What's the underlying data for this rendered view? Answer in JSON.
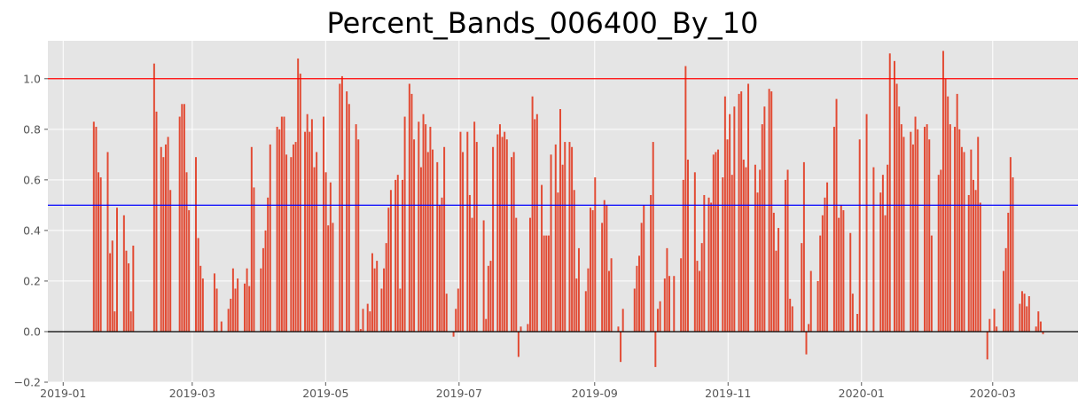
{
  "chart_data": {
    "type": "bar",
    "title": "Percent_Bands_006400_By_10",
    "xlabel": "",
    "ylabel": "",
    "x_start": "2019-01-15",
    "x_end": "2020-03-24",
    "xlim": [
      "2018-12-25",
      "2020-04-09"
    ],
    "ylim": [
      -0.2,
      1.15
    ],
    "yticks": [
      -0.2,
      0.0,
      0.2,
      0.4,
      0.6,
      0.8,
      1.0
    ],
    "ytick_labels": [
      "−0.2",
      "0.0",
      "0.2",
      "0.4",
      "0.6",
      "0.8",
      "1.0"
    ],
    "xticks": [
      "2019-01-01",
      "2019-03-01",
      "2019-05-01",
      "2019-07-01",
      "2019-09-01",
      "2019-11-01",
      "2020-01-01",
      "2020-03-01"
    ],
    "xtick_labels": [
      "2019-01",
      "2019-03",
      "2019-05",
      "2019-07",
      "2019-09",
      "2019-11",
      "2020-01",
      "2020-03"
    ],
    "grid": true,
    "bar_color": "#E24A33",
    "colors": {
      "background": "#E5E5E5",
      "grid": "#FFFFFF",
      "upper_line": "#FF0000",
      "mid_line": "#0000FF",
      "zero_line": "#000000"
    },
    "reference_lines": [
      {
        "y": 1.0,
        "color": "#FF0000"
      },
      {
        "y": 0.5,
        "color": "#0000FF"
      },
      {
        "y": 0.0,
        "color": "#000000"
      }
    ],
    "values": [
      0.83,
      0.81,
      0.63,
      0.61,
      0,
      0,
      0.71,
      0.31,
      0.36,
      0.08,
      0.49,
      0,
      0,
      0.46,
      0.32,
      0.27,
      0.08,
      0.34,
      0,
      0,
      0,
      0,
      0,
      0,
      0,
      0,
      1.06,
      0.87,
      0,
      0.73,
      0.69,
      0.74,
      0.77,
      0.56,
      0,
      0,
      0,
      0.85,
      0.9,
      0.9,
      0.63,
      0.48,
      0,
      0,
      0.69,
      0.37,
      0.26,
      0.21,
      0,
      0,
      0,
      0,
      0.23,
      0.17,
      0,
      0.04,
      0,
      0,
      0.09,
      0.13,
      0.25,
      0.17,
      0.21,
      0,
      0,
      0.19,
      0.25,
      0.18,
      0.73,
      0.57,
      0,
      0,
      0.25,
      0.33,
      0.4,
      0.53,
      0.74,
      0,
      0,
      0.81,
      0.8,
      0.85,
      0.85,
      0.7,
      0,
      0.69,
      0.74,
      0.75,
      1.08,
      1.02,
      0,
      0.79,
      0.86,
      0.79,
      0.84,
      0.65,
      0.71,
      0,
      0,
      0.85,
      0.63,
      0.42,
      0.59,
      0.43,
      0,
      0,
      0.98,
      1.01,
      0,
      0.95,
      0.9,
      0,
      0,
      0.82,
      0.76,
      0.01,
      0.09,
      0,
      0.11,
      0.08,
      0.31,
      0.25,
      0.28,
      0,
      0.17,
      0.25,
      0.35,
      0.49,
      0.56,
      0,
      0.6,
      0.62,
      0.17,
      0.6,
      0.85,
      0,
      0.98,
      0.94,
      0.76,
      0,
      0.83,
      0.65,
      0.86,
      0.82,
      0.71,
      0.81,
      0.72,
      0,
      0.67,
      0.5,
      0.53,
      0.73,
      0.15,
      0,
      0,
      -0.02,
      0.09,
      0.17,
      0.79,
      0.71,
      0,
      0.79,
      0.54,
      0.45,
      0.83,
      0.75,
      0,
      0,
      0.44,
      0.05,
      0.26,
      0.28,
      0.73,
      0,
      0.78,
      0.82,
      0.77,
      0.79,
      0.76,
      0,
      0.69,
      0.71,
      0.45,
      -0.1,
      0.02,
      0,
      0,
      0.03,
      0.45,
      0.93,
      0.84,
      0.86,
      0,
      0.58,
      0.38,
      0.38,
      0.38,
      0.7,
      0,
      0.74,
      0.55,
      0.88,
      0.66,
      0.75,
      0,
      0.75,
      0.73,
      0.56,
      0.21,
      0.33,
      0,
      0,
      0.16,
      0.25,
      0.49,
      0.48,
      0.61,
      0,
      0,
      0.43,
      0.52,
      0.5,
      0.24,
      0.29,
      0,
      0,
      0.02,
      -0.12,
      0.09,
      0,
      0,
      0,
      0,
      0.17,
      0.26,
      0.3,
      0.43,
      0.5,
      0,
      0,
      0.54,
      0.75,
      -0.14,
      0.09,
      0.12,
      0,
      0.21,
      0.33,
      0.22,
      0,
      0.22,
      0,
      0,
      0.29,
      0.6,
      1.05,
      0.68,
      0,
      0,
      0.63,
      0.28,
      0.24,
      0.35,
      0.54,
      0,
      0.53,
      0.51,
      0.7,
      0.71,
      0.72,
      0,
      0.61,
      0.93,
      0.76,
      0.86,
      0.62,
      0.89,
      0,
      0.94,
      0.95,
      0.68,
      0.65,
      0.98,
      0,
      0,
      0.66,
      0.55,
      0.64,
      0.82,
      0.89,
      0,
      0.96,
      0.95,
      0.47,
      0.32,
      0.41,
      0,
      0,
      0.6,
      0.64,
      0.13,
      0.1,
      0,
      0,
      0,
      0.35,
      0.67,
      -0.09,
      0.03,
      0.24,
      0,
      0,
      0.2,
      0.38,
      0.46,
      0.53,
      0.59,
      0,
      0,
      0.81,
      0.92,
      0.45,
      0.5,
      0.48,
      0,
      0,
      0.39,
      0.15,
      0,
      0.07,
      0.76,
      0,
      0,
      0.86,
      0,
      0,
      0.65,
      0,
      0,
      0.55,
      0.62,
      0.46,
      0.66,
      1.1,
      0,
      1.07,
      0.98,
      0.89,
      0.82,
      0.77,
      0,
      0,
      0.79,
      0.74,
      0.85,
      0.8,
      0,
      0,
      0.81,
      0.82,
      0.76,
      0.38,
      0,
      0,
      0.62,
      0.64,
      1.11,
      1.0,
      0.93,
      0.82,
      0,
      0.81,
      0.94,
      0.8,
      0.73,
      0.71,
      0,
      0.54,
      0.72,
      0.6,
      0.56,
      0.77,
      0.51,
      0,
      0,
      -0.11,
      0.05,
      0,
      0.09,
      0.02,
      0,
      0,
      0.24,
      0.33,
      0.47,
      0.69,
      0.61,
      0,
      0,
      0.11,
      0.16,
      0.15,
      0.1,
      0.14,
      0,
      0,
      0.02,
      0.08,
      0.04,
      -0.01
    ]
  }
}
